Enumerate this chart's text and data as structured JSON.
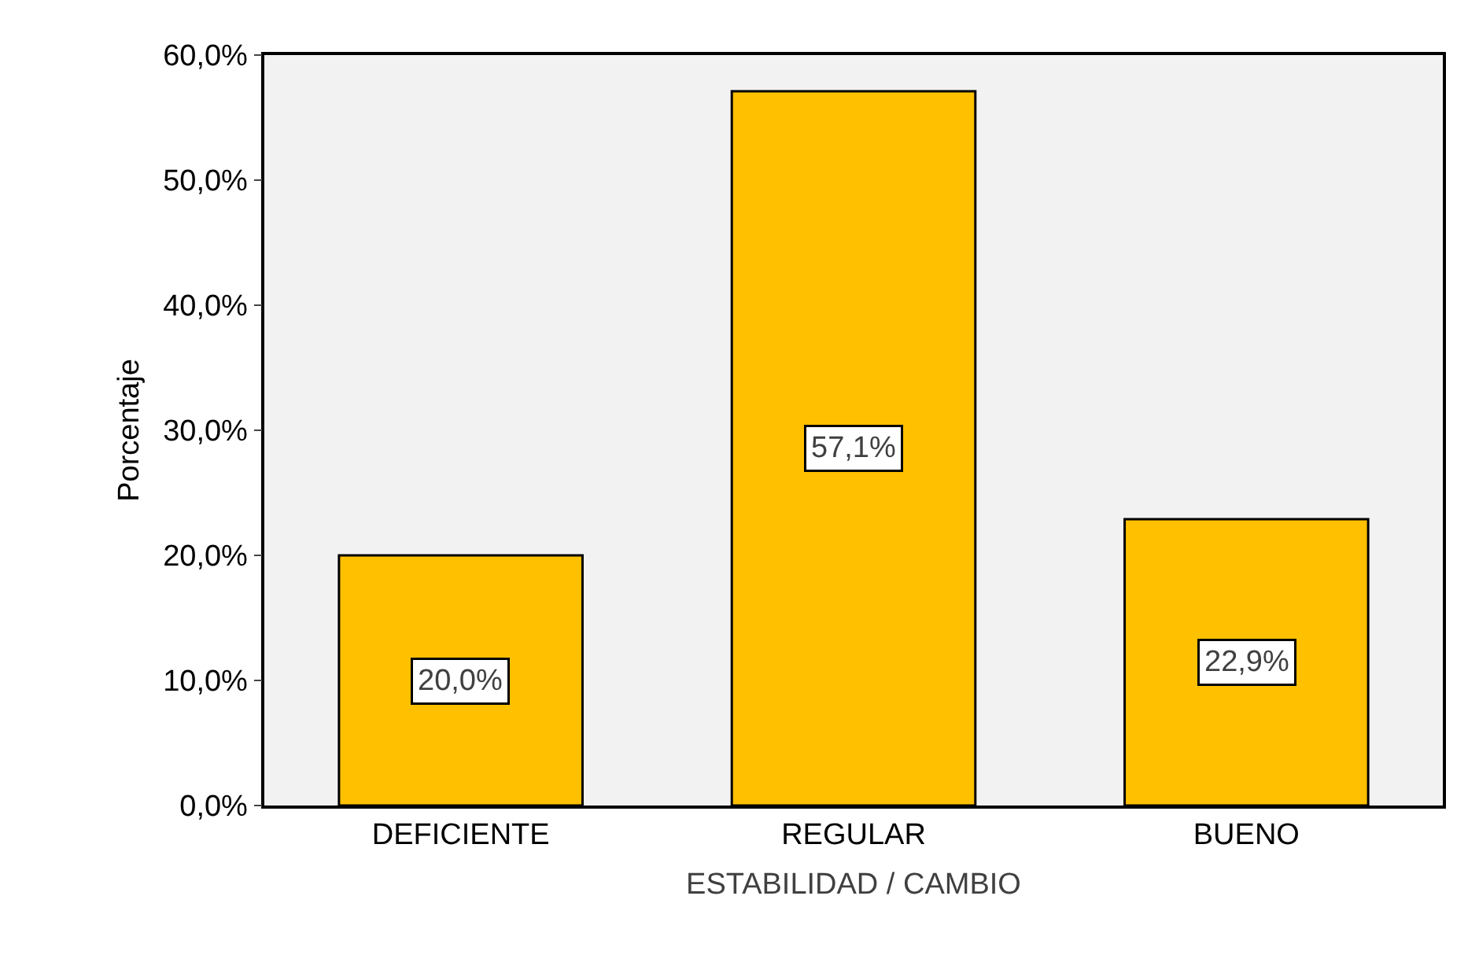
{
  "chart_data": {
    "type": "bar",
    "xlabel": "ESTABILIDAD / CAMBIO",
    "ylabel": "Porcentaje",
    "categories": [
      "DEFICIENTE",
      "REGULAR",
      "BUENO"
    ],
    "values": [
      20.0,
      57.1,
      22.9
    ],
    "value_labels": [
      "20,0%",
      "57,1%",
      "22,9%"
    ],
    "color": "#ffc000",
    "ylim": [
      0,
      60
    ],
    "yticks": [
      {
        "value": 0,
        "label": "0,0%"
      },
      {
        "value": 10,
        "label": "10,0%"
      },
      {
        "value": 20,
        "label": "20,0%"
      },
      {
        "value": 30,
        "label": "30,0%"
      },
      {
        "value": 40,
        "label": "40,0%"
      },
      {
        "value": 50,
        "label": "50,0%"
      },
      {
        "value": 60,
        "label": "60,0%"
      }
    ],
    "grid": false,
    "legend": false
  }
}
